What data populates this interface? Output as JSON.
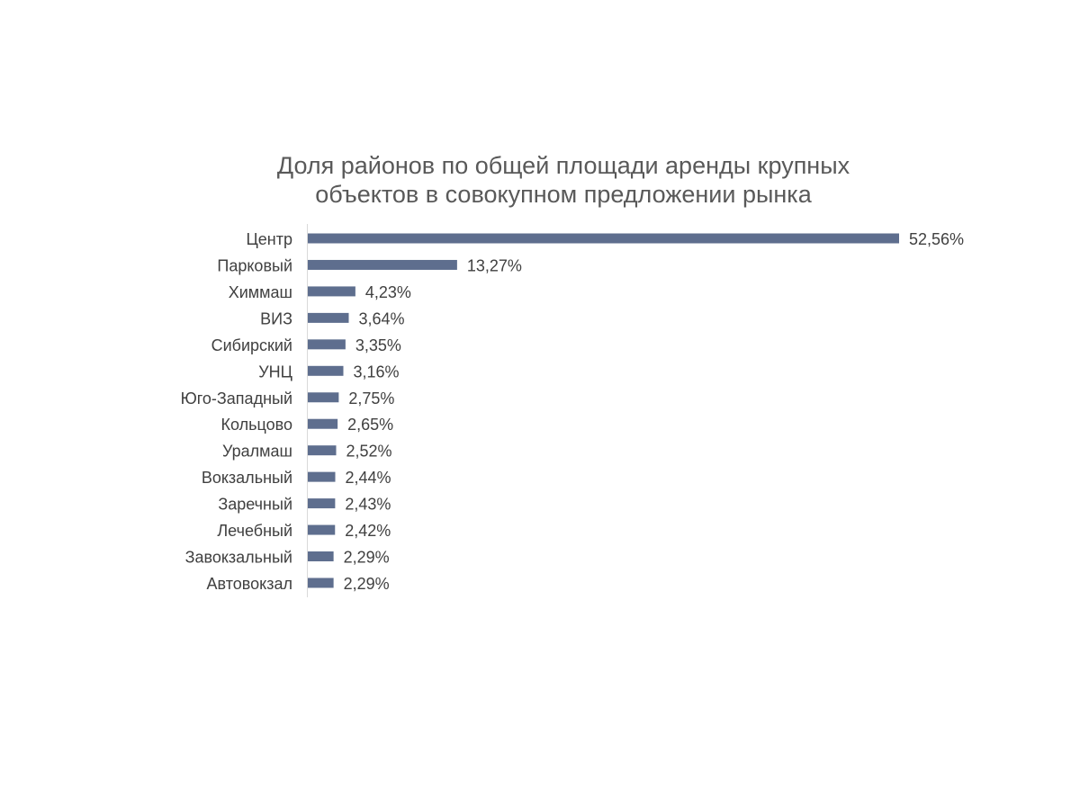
{
  "chart_data": {
    "type": "bar",
    "orientation": "horizontal",
    "title": "Доля районов по общей площади аренды крупных объектов в совокупном предложении рынка",
    "title_lines": [
      "Доля районов по общей площади аренды крупных",
      "объектов в совокупном предложении рынка"
    ],
    "categories": [
      "Центр",
      "Парковый",
      "Химмаш",
      "ВИЗ",
      "Сибирский",
      "УНЦ",
      "Юго-Западный",
      "Кольцово",
      "Уралмаш",
      "Вокзальный",
      "Заречный",
      "Лечебный",
      "Завокзальный",
      "Автовокзал"
    ],
    "values": [
      52.56,
      13.27,
      4.23,
      3.64,
      3.35,
      3.16,
      2.75,
      2.65,
      2.52,
      2.44,
      2.43,
      2.42,
      2.29,
      2.29
    ],
    "value_labels": [
      "52,56%",
      "13,27%",
      "4,23%",
      "3,64%",
      "3,35%",
      "3,16%",
      "2,75%",
      "2,65%",
      "2,52%",
      "2,44%",
      "2,43%",
      "2,42%",
      "2,29%",
      "2,29%"
    ],
    "xlim": [
      0,
      52.56
    ],
    "grid": false,
    "legend": "none",
    "bar_color": "#5e6e8e"
  }
}
